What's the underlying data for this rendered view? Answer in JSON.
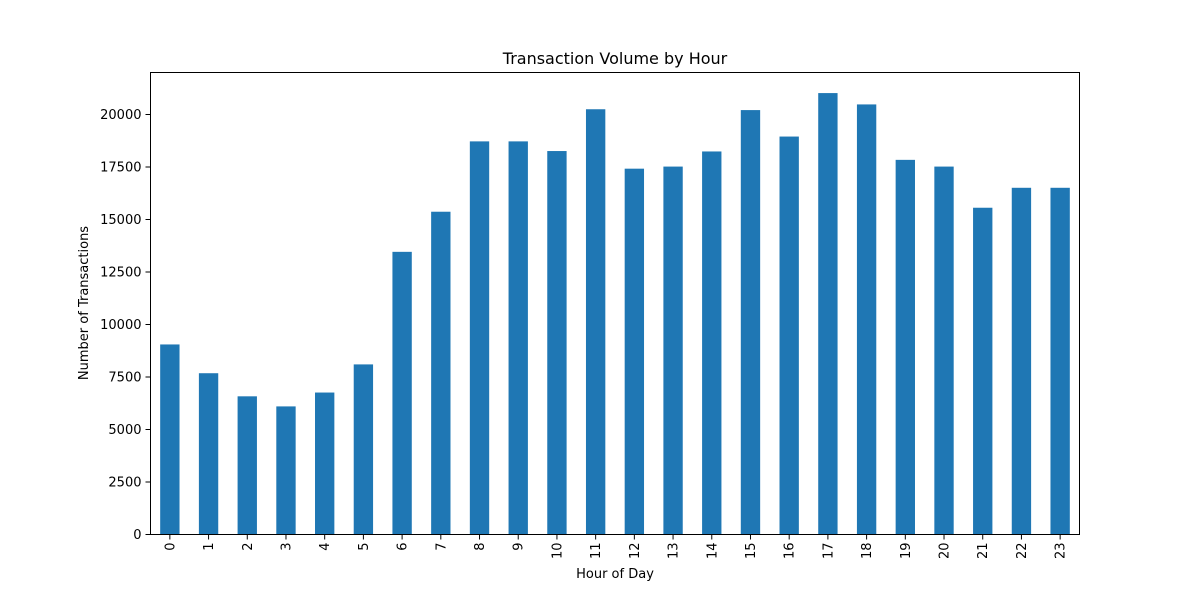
{
  "chart_data": {
    "type": "bar",
    "title": "Transaction Volume by Hour",
    "xlabel": "Hour of Day",
    "ylabel": "Number of Transactions",
    "categories": [
      "0",
      "1",
      "2",
      "3",
      "4",
      "5",
      "6",
      "7",
      "8",
      "9",
      "10",
      "11",
      "12",
      "13",
      "14",
      "15",
      "16",
      "17",
      "18",
      "19",
      "20",
      "21",
      "22",
      "23"
    ],
    "values": [
      9050,
      7680,
      6580,
      6100,
      6760,
      8100,
      13460,
      15370,
      18720,
      18720,
      18260,
      20250,
      17420,
      17520,
      18240,
      20210,
      18950,
      21020,
      20480,
      17840,
      17520,
      15560,
      16510,
      16510
    ],
    "ylim": [
      0,
      22000
    ],
    "yticks": [
      0,
      2500,
      5000,
      7500,
      10000,
      12500,
      15000,
      17500,
      20000
    ],
    "ytick_labels": [
      "0",
      "2500",
      "5000",
      "7500",
      "10000",
      "12500",
      "15000",
      "17500",
      "20000"
    ],
    "bar_color": "#1f77b4",
    "grid": false,
    "legend": "none"
  }
}
